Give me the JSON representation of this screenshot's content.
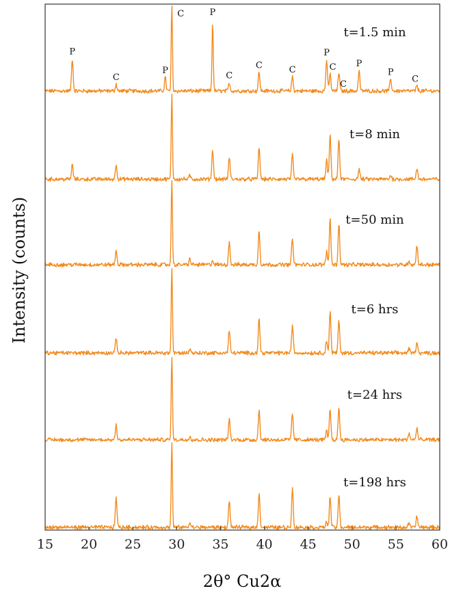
{
  "chart_data": {
    "type": "line",
    "title": "",
    "xlabel": "2θ° Cu2α",
    "ylabel": "Intensity (counts)",
    "xlim": [
      15,
      60
    ],
    "x_ticks": [
      15,
      20,
      25,
      30,
      35,
      40,
      45,
      50,
      55,
      60
    ],
    "color": "#f28a1d",
    "y_axis_scale": "stacked-offset, arbitrary counts",
    "series": [
      {
        "name": "t=1.5 min",
        "peaks": [
          {
            "x": 18.1,
            "h": 0.38
          },
          {
            "x": 23.1,
            "h": 0.08
          },
          {
            "x": 28.7,
            "h": 0.16
          },
          {
            "x": 29.45,
            "h": 1.0
          },
          {
            "x": 34.1,
            "h": 0.82
          },
          {
            "x": 36.0,
            "h": 0.1
          },
          {
            "x": 39.4,
            "h": 0.22
          },
          {
            "x": 43.2,
            "h": 0.17
          },
          {
            "x": 47.1,
            "h": 0.37
          },
          {
            "x": 47.5,
            "h": 0.2
          },
          {
            "x": 48.5,
            "h": 0.22
          },
          {
            "x": 50.8,
            "h": 0.24
          },
          {
            "x": 54.4,
            "h": 0.14
          },
          {
            "x": 57.4,
            "h": 0.06
          }
        ],
        "peak_labels": [
          {
            "x": 18.1,
            "text": "P"
          },
          {
            "x": 23.1,
            "text": "C"
          },
          {
            "x": 28.7,
            "text": "P"
          },
          {
            "x": 29.45,
            "text": "C"
          },
          {
            "x": 34.1,
            "text": "P"
          },
          {
            "x": 36.0,
            "text": "C"
          },
          {
            "x": 39.4,
            "text": "C"
          },
          {
            "x": 43.2,
            "text": "C"
          },
          {
            "x": 47.1,
            "text": "P"
          },
          {
            "x": 47.8,
            "text": "C"
          },
          {
            "x": 49.0,
            "text": "C"
          },
          {
            "x": 50.8,
            "text": "P"
          },
          {
            "x": 54.4,
            "text": "P"
          },
          {
            "x": 57.2,
            "text": "C"
          }
        ]
      },
      {
        "name": "t=8 min",
        "peaks": [
          {
            "x": 18.1,
            "h": 0.17
          },
          {
            "x": 23.1,
            "h": 0.18
          },
          {
            "x": 29.45,
            "h": 1.0
          },
          {
            "x": 31.5,
            "h": 0.04
          },
          {
            "x": 34.1,
            "h": 0.35
          },
          {
            "x": 36.0,
            "h": 0.26
          },
          {
            "x": 39.4,
            "h": 0.38
          },
          {
            "x": 43.2,
            "h": 0.28
          },
          {
            "x": 47.1,
            "h": 0.22
          },
          {
            "x": 47.5,
            "h": 0.52
          },
          {
            "x": 48.5,
            "h": 0.47
          },
          {
            "x": 50.8,
            "h": 0.12
          },
          {
            "x": 54.4,
            "h": 0.05
          },
          {
            "x": 57.4,
            "h": 0.13
          }
        ]
      },
      {
        "name": "t=50 min",
        "peaks": [
          {
            "x": 23.1,
            "h": 0.17
          },
          {
            "x": 29.45,
            "h": 1.0
          },
          {
            "x": 31.5,
            "h": 0.07
          },
          {
            "x": 34.1,
            "h": 0.05
          },
          {
            "x": 36.0,
            "h": 0.27
          },
          {
            "x": 39.4,
            "h": 0.4
          },
          {
            "x": 43.2,
            "h": 0.32
          },
          {
            "x": 47.1,
            "h": 0.15
          },
          {
            "x": 47.5,
            "h": 0.54
          },
          {
            "x": 48.5,
            "h": 0.48
          },
          {
            "x": 56.5,
            "h": 0.05
          },
          {
            "x": 57.4,
            "h": 0.22
          }
        ]
      },
      {
        "name": "t=6 hrs",
        "peaks": [
          {
            "x": 23.1,
            "h": 0.18
          },
          {
            "x": 29.45,
            "h": 1.0
          },
          {
            "x": 31.5,
            "h": 0.05
          },
          {
            "x": 36.0,
            "h": 0.27
          },
          {
            "x": 39.4,
            "h": 0.4
          },
          {
            "x": 43.2,
            "h": 0.33
          },
          {
            "x": 47.1,
            "h": 0.14
          },
          {
            "x": 47.5,
            "h": 0.49
          },
          {
            "x": 48.5,
            "h": 0.38
          },
          {
            "x": 56.5,
            "h": 0.05
          },
          {
            "x": 57.4,
            "h": 0.14
          }
        ]
      },
      {
        "name": "t=24 hrs",
        "peaks": [
          {
            "x": 23.1,
            "h": 0.18
          },
          {
            "x": 29.45,
            "h": 1.0
          },
          {
            "x": 31.5,
            "h": 0.05
          },
          {
            "x": 36.0,
            "h": 0.24
          },
          {
            "x": 39.4,
            "h": 0.35
          },
          {
            "x": 43.2,
            "h": 0.31
          },
          {
            "x": 47.1,
            "h": 0.1
          },
          {
            "x": 47.5,
            "h": 0.36
          },
          {
            "x": 48.5,
            "h": 0.38
          },
          {
            "x": 56.5,
            "h": 0.08
          },
          {
            "x": 57.4,
            "h": 0.14
          }
        ]
      },
      {
        "name": "t=198 hrs",
        "peaks": [
          {
            "x": 23.1,
            "h": 0.37
          },
          {
            "x": 29.45,
            "h": 1.0
          },
          {
            "x": 31.5,
            "h": 0.06
          },
          {
            "x": 36.0,
            "h": 0.32
          },
          {
            "x": 39.4,
            "h": 0.42
          },
          {
            "x": 43.2,
            "h": 0.46
          },
          {
            "x": 47.1,
            "h": 0.07
          },
          {
            "x": 47.5,
            "h": 0.36
          },
          {
            "x": 48.5,
            "h": 0.38
          },
          {
            "x": 56.5,
            "h": 0.05
          },
          {
            "x": 57.4,
            "h": 0.13
          }
        ]
      }
    ]
  }
}
